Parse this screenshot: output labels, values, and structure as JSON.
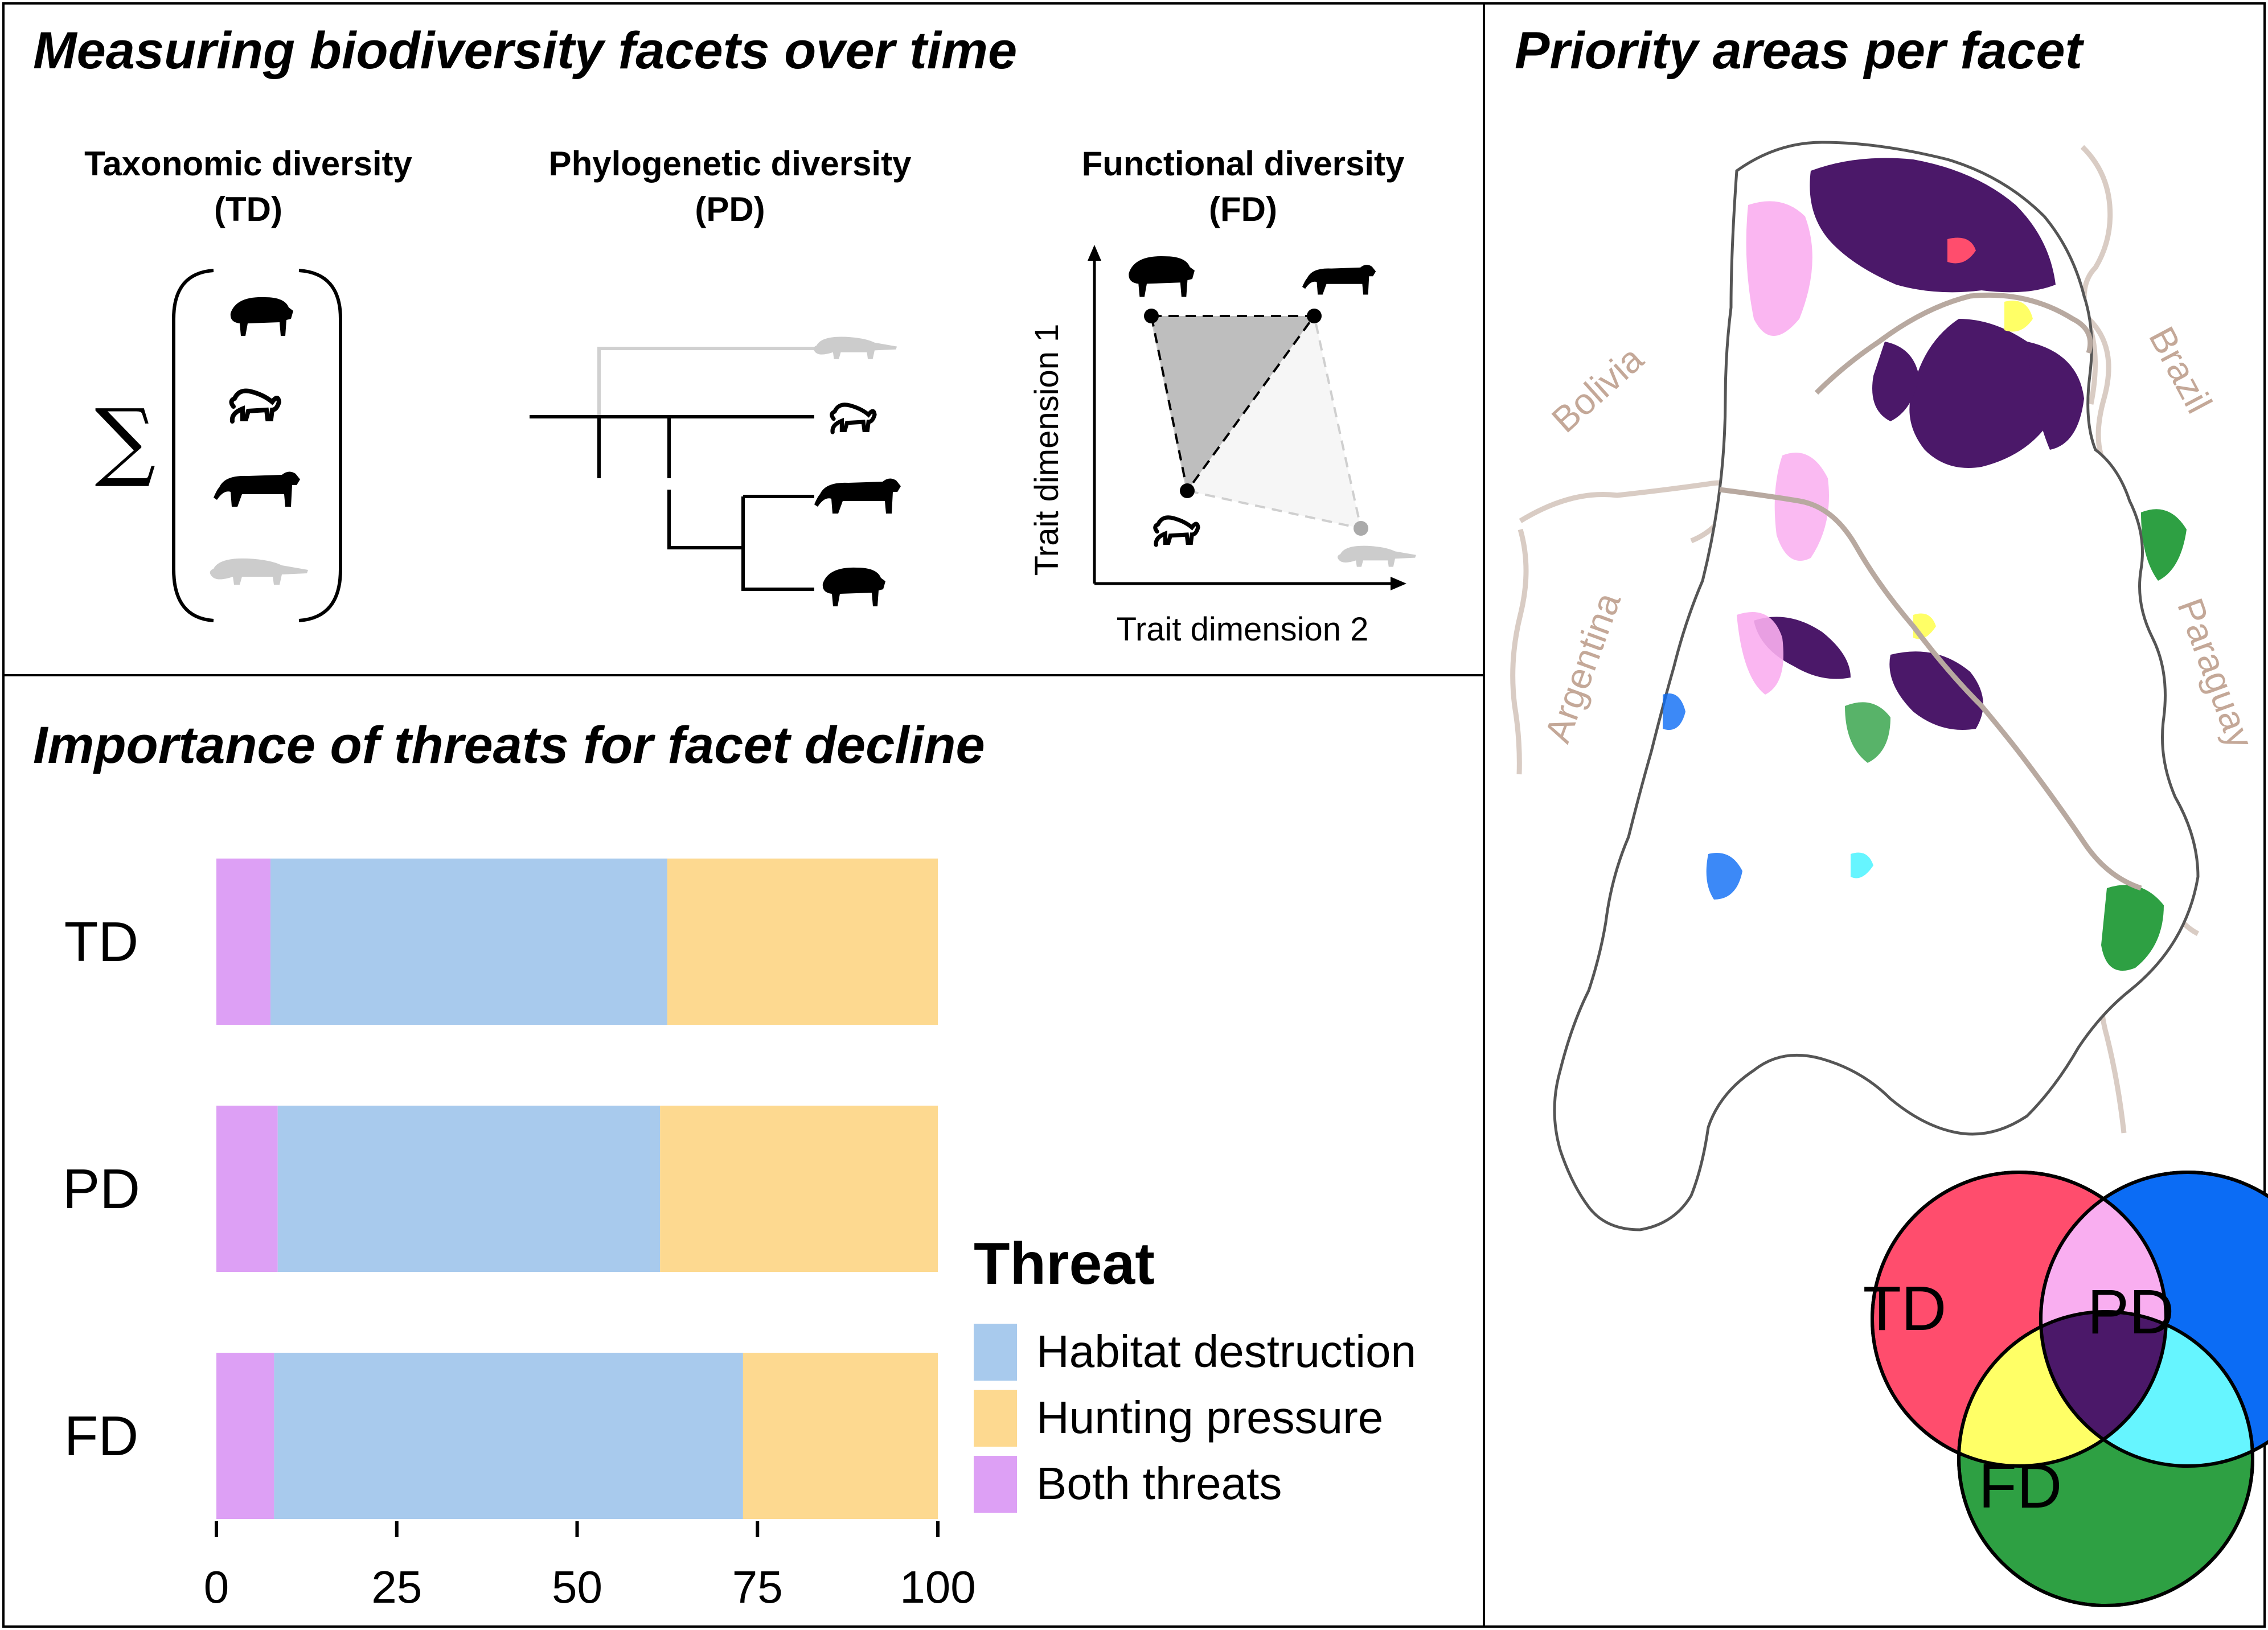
{
  "panels": {
    "facets_title": "Measuring biodiversity facets over time",
    "threats_title": "Importance of threats for facet decline",
    "map_title": "Priority areas per facet"
  },
  "facets": {
    "td": {
      "line1": "Taxonomic diversity",
      "line2": "(TD)",
      "sum_symbol": "∑"
    },
    "pd": {
      "line1": "Phylogenetic diversity",
      "line2": "(PD)"
    },
    "fd": {
      "line1": "Functional diversity",
      "line2": "(FD)",
      "y_axis_label": "Trait dimension  1",
      "x_axis_label": "Trait dimension  2"
    }
  },
  "icons": [
    "tapir-icon",
    "monkey-icon",
    "jaguar-icon",
    "anteater-icon"
  ],
  "chart_data": {
    "type": "bar",
    "orientation": "horizontal",
    "stacked": true,
    "categories": [
      "TD",
      "PD",
      "FD"
    ],
    "series": [
      {
        "name": "Both threats",
        "color": "#dda0f5",
        "values": [
          7.5,
          8.5,
          8
        ]
      },
      {
        "name": "Habitat destruction",
        "color": "#a8caed",
        "values": [
          55,
          53,
          65
        ]
      },
      {
        "name": "Hunting pressure",
        "color": "#fdd990",
        "values": [
          37.5,
          38.5,
          27
        ]
      }
    ],
    "xlim": [
      0,
      100
    ],
    "xticks": [
      "0",
      "25",
      "50",
      "75",
      "100"
    ],
    "legend": {
      "title": "Threat",
      "placement": "bottom-right",
      "items": [
        "Habitat destruction",
        "Hunting pressure",
        "Both threats"
      ]
    }
  },
  "map": {
    "country_labels": [
      "Bolivia",
      "Brazil",
      "Argentina",
      "Paraguay"
    ],
    "label_color": "#c4a898",
    "priority_colors": {
      "td": "#ff4d6d",
      "pd": "#0b6cf5",
      "fd": "#2ea043",
      "td_pd": "#f9aef0",
      "td_fd": "#ffff66",
      "pd_fd": "#66f5ff",
      "all": "#4b1869"
    }
  },
  "venn": {
    "td": "TD",
    "pd": "PD",
    "fd": "FD"
  }
}
